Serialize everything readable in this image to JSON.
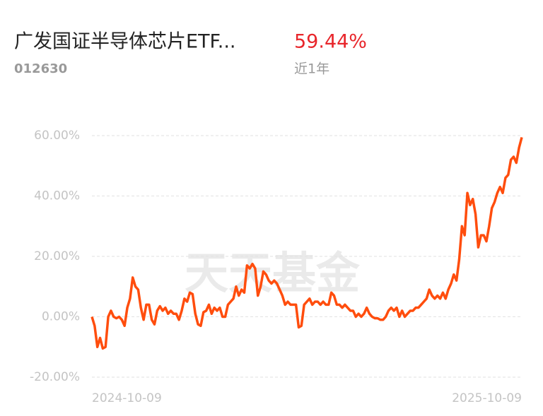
{
  "header": {
    "title": "广发国证半导体芯片ETF...",
    "code": "012630",
    "return_label": "59.44%",
    "period": "近1年"
  },
  "watermark": "天天基金",
  "chart_data": {
    "type": "line",
    "categories": [
      "2024-10-09",
      null,
      null,
      null,
      null,
      null,
      null,
      null,
      null,
      null,
      null,
      null,
      null,
      null,
      null,
      null,
      null,
      null,
      null,
      null,
      null,
      null,
      null,
      null,
      null,
      null,
      null,
      null,
      null,
      null,
      null,
      null,
      null,
      null,
      null,
      null,
      null,
      null,
      null,
      null,
      null,
      null,
      null,
      null,
      null,
      null,
      null,
      null,
      null,
      null,
      null,
      null,
      null,
      null,
      null,
      null,
      null,
      null,
      null,
      null,
      null,
      null,
      null,
      null,
      null,
      null,
      null,
      null,
      null,
      null,
      null,
      null,
      null,
      null,
      null,
      null,
      null,
      null,
      null,
      null,
      null,
      null,
      null,
      null,
      null,
      null,
      null,
      null,
      null,
      null,
      null,
      null,
      null,
      null,
      null,
      null,
      null,
      null,
      null,
      null,
      null,
      null,
      null,
      null,
      null,
      null,
      null,
      null,
      null,
      null,
      null,
      null,
      null,
      null,
      null,
      null,
      null,
      null,
      null,
      null,
      null,
      null,
      null,
      null,
      null,
      null,
      null,
      null,
      null,
      null,
      null,
      null,
      null,
      null,
      null,
      null,
      null,
      null,
      null,
      null,
      null,
      null,
      null,
      null,
      null,
      null,
      null,
      null,
      null,
      null,
      null,
      null,
      null,
      null,
      null,
      null,
      null,
      null,
      "2025-10-09"
    ],
    "series": [
      {
        "color": "#ff4d0d",
        "values": [
          0,
          -3,
          -10,
          -7,
          -10.5,
          -10,
          0,
          2,
          0,
          -0.5,
          0,
          -1,
          -3,
          3,
          6,
          13,
          10,
          9,
          3,
          -1,
          4,
          4,
          -1,
          -2.5,
          2,
          3.5,
          2,
          3,
          1,
          2,
          1,
          1,
          -1,
          2,
          6,
          5,
          8,
          7.5,
          1,
          -2.5,
          -3,
          1.5,
          2,
          4,
          1,
          3,
          2,
          3,
          0,
          0,
          4,
          5,
          6,
          10,
          7,
          9,
          8,
          17,
          16,
          17.5,
          16,
          7,
          10,
          15,
          14,
          12,
          11,
          12,
          11,
          9,
          7,
          4,
          5,
          4,
          4,
          4,
          -3.5,
          -3,
          4,
          5,
          6,
          4,
          5,
          5,
          4,
          5,
          4,
          4,
          8,
          7,
          4,
          4,
          3,
          4,
          3,
          2,
          2,
          0,
          1,
          0,
          1,
          3,
          1,
          0,
          -0.5,
          -0.5,
          -1,
          -1,
          0,
          2,
          3,
          2,
          3,
          0,
          2,
          0,
          1,
          2,
          2,
          3,
          3,
          4,
          5,
          6,
          9,
          7,
          6,
          7,
          6,
          8,
          6,
          9,
          11,
          14,
          12,
          19,
          30,
          27,
          41,
          37,
          39,
          34,
          23,
          27,
          27,
          25,
          30,
          36,
          38,
          41,
          43,
          41,
          46,
          47,
          52,
          53,
          51,
          56,
          59.44
        ]
      }
    ],
    "ylim": [
      -20,
      60
    ],
    "yticks": [
      {
        "value": 60,
        "label": "60.00%"
      },
      {
        "value": 40,
        "label": "40.00%"
      },
      {
        "value": 20,
        "label": "20.00%"
      },
      {
        "value": 0,
        "label": "0.00%"
      },
      {
        "value": -20,
        "label": "-20.00%"
      }
    ],
    "grid": true
  }
}
